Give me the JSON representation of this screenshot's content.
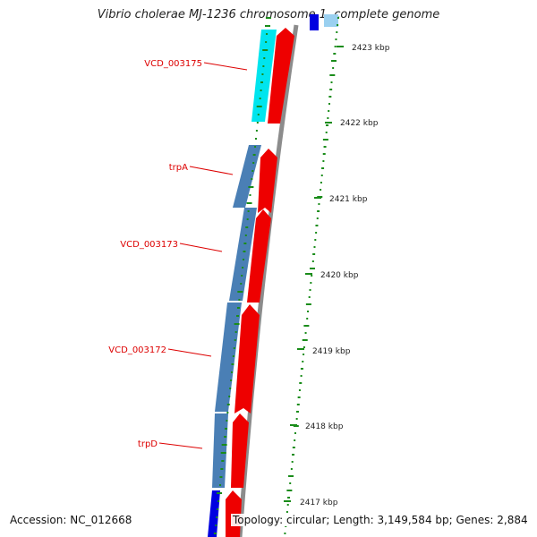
{
  "title": "Vibrio cholerae MJ-1236 chromosome 1, complete genome",
  "accession": "Accession: NC_012668",
  "summary": "Topology: circular; Length: 3,149,584 bp; Genes: 2,884",
  "colors": {
    "reverse_gene_cyan": "#00e5ee",
    "reverse_gene_steelblue": "#4a7fb5",
    "reverse_gene_blue": "#0000e0",
    "forward_gene": "#ee0000",
    "backbone": "#8c8c8c",
    "gc_ticks": "#1a8c1a",
    "label": "#dd0000"
  },
  "scale_ticks": [
    {
      "label": "2423 kbp"
    },
    {
      "label": "2422 kbp"
    },
    {
      "label": "2421 kbp"
    },
    {
      "label": "2420 kbp"
    },
    {
      "label": "2419 kbp"
    },
    {
      "label": "2418 kbp"
    },
    {
      "label": "2417 kbp"
    }
  ],
  "gene_labels": [
    {
      "text": "VCD_003175"
    },
    {
      "text": "trpA"
    },
    {
      "text": "VCD_003173"
    },
    {
      "text": "VCD_003172"
    },
    {
      "text": "trpD"
    }
  ]
}
